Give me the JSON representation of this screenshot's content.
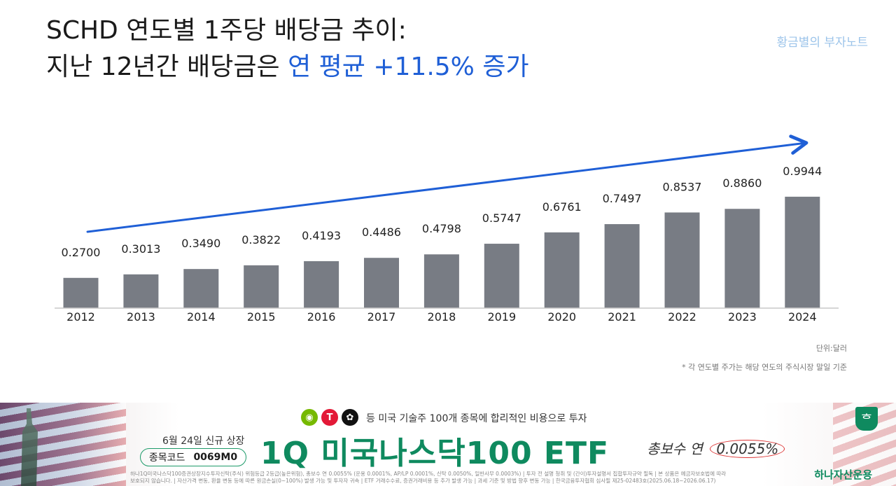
{
  "title": {
    "line1": "SCHD 연도별 1주당 배당금 추이:",
    "line2_prefix": "지난 12년간 배당금은 ",
    "line2_highlight": "연 평균 +11.5% 증가"
  },
  "brand": "황금별의 부자노트",
  "unit_label": "단위:달러",
  "footnote": "* 각 연도별 주가는 해당 연도의 주식시장 말일 기준",
  "colors": {
    "bar": "#787c84",
    "trend_arrow": "#1f5fd6",
    "highlight": "#1f5fd6",
    "axis": "#c8c8c8"
  },
  "chart_data": {
    "type": "bar",
    "title": "SCHD 연도별 1주당 배당금 추이",
    "xlabel": "",
    "ylabel": "",
    "unit": "달러",
    "categories": [
      "2012",
      "2013",
      "2014",
      "2015",
      "2016",
      "2017",
      "2018",
      "2019",
      "2020",
      "2021",
      "2022",
      "2023",
      "2024"
    ],
    "values": [
      0.27,
      0.3013,
      0.349,
      0.3822,
      0.4193,
      0.4486,
      0.4798,
      0.5747,
      0.6761,
      0.7497,
      0.8537,
      0.886,
      0.9944
    ],
    "value_labels": [
      "0.2700",
      "0.3013",
      "0.3490",
      "0.3822",
      "0.4193",
      "0.4486",
      "0.4798",
      "0.5747",
      "0.6761",
      "0.7497",
      "0.8537",
      "0.8860",
      "0.9944"
    ],
    "ylim": [
      0,
      1.25
    ],
    "grid": false,
    "legend": "none",
    "annotation": "upward trend arrow"
  },
  "ad": {
    "logo_icons": [
      "nvidia-icon",
      "tesla-icon",
      "openai-icon"
    ],
    "tagline": "등 미국 기술주 100개 종목에 합리적인 비용으로 투자",
    "listing_date": "6월 24일 신규 상장",
    "code_label": "종목코드",
    "code_value": "0069M0",
    "product_name": "1Q 미국나스닥100 ETF",
    "fee_label": "총보수 연",
    "fee_value": "0.0055%",
    "fine_print_1": "하나1Q미국나스닥100증권상장지수투자신탁(주식) 위험등급 2등급(높은위험), 총보수 연 0.0055% (운용 0.0001%, AP/LP 0.0001%, 신탁 0.0050%, 일반사무 0.0003%) | 투자 전 설명 청취 및 (간이)투자설명서 집합투자규약 필독 | 본 상품은 예금자보호법에 따라",
    "fine_print_2": "보호되지 않습니다. | 자산가격 변동, 환율 변동 등에 따른 원금손실(0~100%) 발생 가능 및 투자자 귀속 | ETF 거래수수료, 증권거래비용 등 추가 발생 가능 | 과세 기준 및 방법 향후 변동 가능 | 한국금융투자협회 심사필 제25-02483호(2025.06.18~2026.06.17)",
    "company": "하나자산운용"
  }
}
